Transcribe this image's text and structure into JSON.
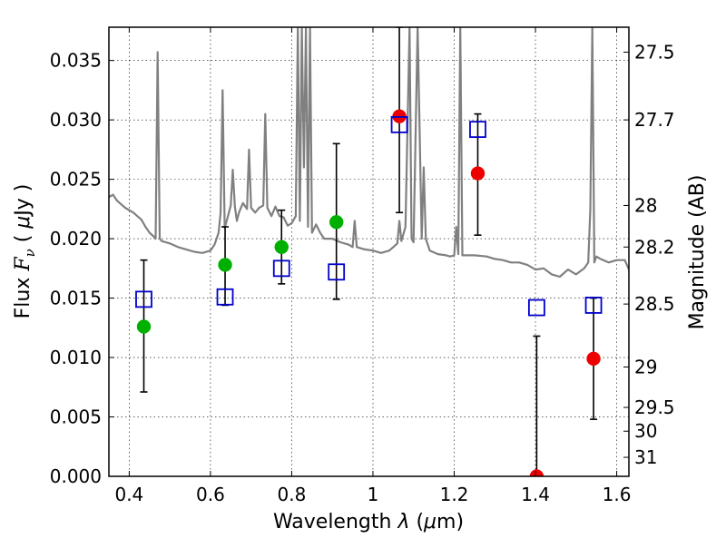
{
  "chart_data": {
    "type": "scatter",
    "xlabel": "Wavelength  λ (μm)",
    "xlabel_parts": {
      "prefix": "Wavelength  ",
      "lambda": "λ",
      "open_paren": " (",
      "mu": "μ",
      "unit": "m)"
    },
    "ylabel": "Flux  F_ν  ( μJy )",
    "ylabel_parts": {
      "prefix": "Flux  ",
      "F": "F",
      "nu": "ν",
      "middle": "  ( ",
      "mu": "μ",
      "unit": "Jy )"
    },
    "y2label": "Magnitude (AB)",
    "xlim": [
      0.35,
      1.63
    ],
    "ylim": [
      0.0,
      0.0378
    ],
    "xticks": [
      {
        "value": 0.4,
        "label": "0.4"
      },
      {
        "value": 0.6,
        "label": "0.6"
      },
      {
        "value": 0.8,
        "label": "0.8"
      },
      {
        "value": 1.0,
        "label": "1"
      },
      {
        "value": 1.2,
        "label": "1.2"
      },
      {
        "value": 1.4,
        "label": "1.4"
      },
      {
        "value": 1.6,
        "label": "1.6"
      }
    ],
    "yticks": [
      {
        "value": 0.0,
        "label": "0.000"
      },
      {
        "value": 0.005,
        "label": "0.005"
      },
      {
        "value": 0.01,
        "label": "0.010"
      },
      {
        "value": 0.015,
        "label": "0.015"
      },
      {
        "value": 0.02,
        "label": "0.020"
      },
      {
        "value": 0.025,
        "label": "0.025"
      },
      {
        "value": 0.03,
        "label": "0.030"
      },
      {
        "value": 0.035,
        "label": "0.035"
      }
    ],
    "y2ticks": [
      {
        "flux": 0.0357,
        "label": "27.5"
      },
      {
        "flux": 0.03,
        "label": "27.7"
      },
      {
        "flux": 0.0228,
        "label": "28"
      },
      {
        "flux": 0.0193,
        "label": "28.2"
      },
      {
        "flux": 0.0145,
        "label": "28.5"
      },
      {
        "flux": 0.0092,
        "label": "29"
      },
      {
        "flux": 0.0058,
        "label": "29.5"
      },
      {
        "flux": 0.0038,
        "label": "30"
      },
      {
        "flux": 0.0016,
        "label": "31"
      }
    ],
    "grid": true,
    "colors": {
      "spectrum": "#808080",
      "green_points": "#00b000",
      "red_points": "#ee0000",
      "squares": "#0000cc",
      "errorbars": "#000000"
    },
    "series": [
      {
        "kind": "line",
        "x": [
          0.35,
          0.36,
          0.37,
          0.38,
          0.39,
          0.4,
          0.41,
          0.42,
          0.43,
          0.44,
          0.45,
          0.46,
          0.465,
          0.47,
          0.475,
          0.48,
          0.5,
          0.52,
          0.54,
          0.56,
          0.58,
          0.6,
          0.61,
          0.62,
          0.625,
          0.63,
          0.635,
          0.64,
          0.65,
          0.655,
          0.66,
          0.665,
          0.67,
          0.68,
          0.69,
          0.695,
          0.7,
          0.71,
          0.72,
          0.73,
          0.735,
          0.74,
          0.75,
          0.76,
          0.77,
          0.78,
          0.79,
          0.8,
          0.81,
          0.815,
          0.82,
          0.825,
          0.83,
          0.835,
          0.84,
          0.845,
          0.85,
          0.86,
          0.87,
          0.88,
          0.9,
          0.92,
          0.94,
          0.95,
          0.955,
          0.96,
          0.98,
          1.0,
          1.02,
          1.04,
          1.05,
          1.06,
          1.065,
          1.07,
          1.08,
          1.09,
          1.095,
          1.1,
          1.11,
          1.12,
          1.125,
          1.13,
          1.14,
          1.16,
          1.18,
          1.19,
          1.2,
          1.205,
          1.21,
          1.215,
          1.22,
          1.25,
          1.28,
          1.3,
          1.32,
          1.34,
          1.36,
          1.38,
          1.4,
          1.42,
          1.44,
          1.46,
          1.48,
          1.5,
          1.52,
          1.53,
          1.535,
          1.54,
          1.545,
          1.55,
          1.56,
          1.58,
          1.6,
          1.62,
          1.63
        ],
        "y": [
          0.0235,
          0.0237,
          0.0232,
          0.0229,
          0.0226,
          0.0224,
          0.0222,
          0.0219,
          0.0216,
          0.021,
          0.0205,
          0.0202,
          0.02,
          0.0357,
          0.02,
          0.0198,
          0.0196,
          0.0193,
          0.0191,
          0.0189,
          0.0188,
          0.019,
          0.0195,
          0.0205,
          0.0222,
          0.0325,
          0.0209,
          0.0215,
          0.0228,
          0.0258,
          0.0227,
          0.0215,
          0.0222,
          0.023,
          0.0225,
          0.0275,
          0.0226,
          0.0222,
          0.0226,
          0.0228,
          0.0305,
          0.0226,
          0.0219,
          0.0227,
          0.0219,
          0.0218,
          0.0211,
          0.0213,
          0.0219,
          0.0378,
          0.0215,
          0.0378,
          0.026,
          0.0378,
          0.021,
          0.0378,
          0.0205,
          0.0212,
          0.0205,
          0.02,
          0.02,
          0.0197,
          0.0195,
          0.0193,
          0.0215,
          0.0193,
          0.0191,
          0.019,
          0.0188,
          0.019,
          0.0193,
          0.0196,
          0.0215,
          0.0198,
          0.021,
          0.0378,
          0.02,
          0.0197,
          0.0378,
          0.02,
          0.026,
          0.02,
          0.019,
          0.0187,
          0.0186,
          0.0185,
          0.0186,
          0.021,
          0.0187,
          0.0378,
          0.0186,
          0.0186,
          0.0185,
          0.0183,
          0.0182,
          0.018,
          0.018,
          0.0178,
          0.0174,
          0.0175,
          0.017,
          0.0168,
          0.0174,
          0.017,
          0.0175,
          0.018,
          0.0225,
          0.0378,
          0.018,
          0.0185,
          0.0183,
          0.018,
          0.0182,
          0.0182,
          0.0174
        ]
      },
      {
        "kind": "points",
        "marker": "circle",
        "color": "green",
        "x": [
          0.436,
          0.636,
          0.775,
          0.91
        ],
        "y": [
          0.0126,
          0.0178,
          0.0193,
          0.0214
        ]
      },
      {
        "kind": "points",
        "marker": "circle",
        "color": "red",
        "x": [
          1.065,
          1.258,
          1.403,
          1.543
        ],
        "y": [
          0.0303,
          0.0255,
          0.0,
          0.0099
        ]
      },
      {
        "kind": "points",
        "marker": "open-square",
        "color": "blue",
        "x": [
          0.436,
          0.636,
          0.775,
          0.91,
          1.065,
          1.258,
          1.403,
          1.543
        ],
        "y": [
          0.0149,
          0.0151,
          0.0175,
          0.0172,
          0.0296,
          0.0292,
          0.0142,
          0.0144
        ]
      },
      {
        "kind": "errorbars",
        "x": [
          0.436,
          0.636,
          0.775,
          0.91,
          1.065,
          1.258,
          1.403,
          1.543
        ],
        "y_low": [
          0.0071,
          0.0144,
          0.0162,
          0.0149,
          0.0222,
          0.0203,
          0.0,
          0.0048
        ],
        "y_high": [
          0.0182,
          0.021,
          0.0224,
          0.028,
          0.0378,
          0.0305,
          0.0118,
          0.015
        ]
      }
    ]
  }
}
